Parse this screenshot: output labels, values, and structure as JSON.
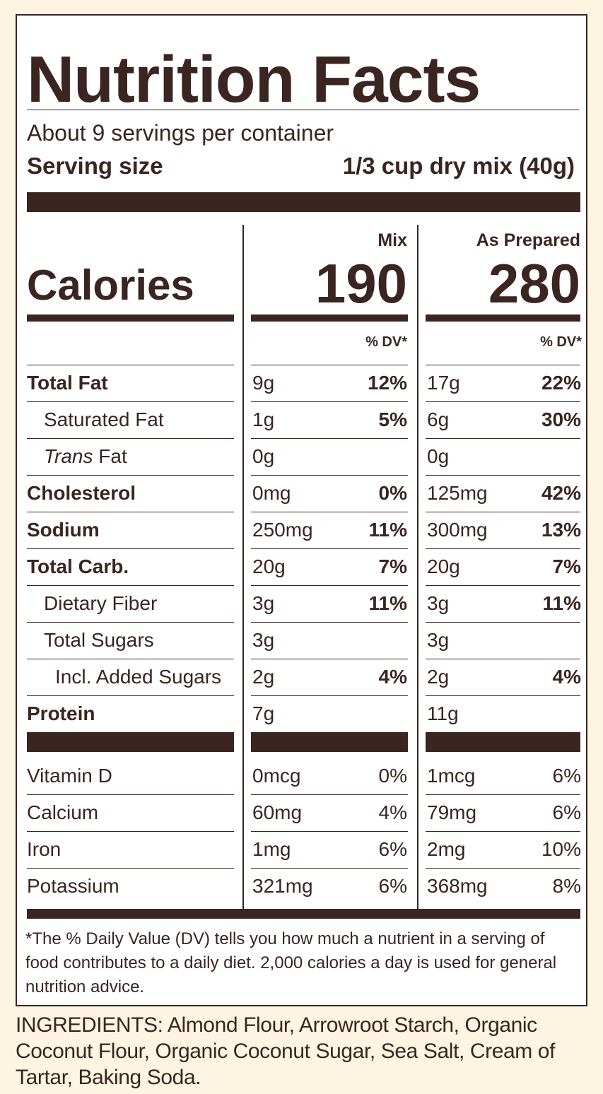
{
  "title": "Nutrition Facts",
  "servings_per_container": "About 9 servings per container",
  "serving_size": {
    "label": "Serving size",
    "value": "1/3 cup dry mix (40g)"
  },
  "columns": {
    "mix": "Mix",
    "prepared": "As Prepared",
    "dv_header": "% DV*"
  },
  "calories": {
    "label": "Calories",
    "mix": "190",
    "prepared": "280"
  },
  "nutrients": [
    {
      "name": "Total Fat",
      "bold": true,
      "indent": 0,
      "mix_amount": "9g",
      "mix_dv": "12%",
      "prep_amount": "17g",
      "prep_dv": "22%"
    },
    {
      "name": "Saturated Fat",
      "bold": false,
      "indent": 1,
      "mix_amount": "1g",
      "mix_dv": "5%",
      "prep_amount": "6g",
      "prep_dv": "30%"
    },
    {
      "name_italic": "Trans",
      "name": " Fat",
      "bold": false,
      "indent": 1,
      "mix_amount": "0g",
      "mix_dv": "",
      "prep_amount": "0g",
      "prep_dv": ""
    },
    {
      "name": "Cholesterol",
      "bold": true,
      "indent": 0,
      "mix_amount": "0mg",
      "mix_dv": "0%",
      "prep_amount": "125mg",
      "prep_dv": "42%"
    },
    {
      "name": "Sodium",
      "bold": true,
      "indent": 0,
      "mix_amount": "250mg",
      "mix_dv": "11%",
      "prep_amount": "300mg",
      "prep_dv": "13%"
    },
    {
      "name": "Total Carb.",
      "bold": true,
      "indent": 0,
      "mix_amount": "20g",
      "mix_dv": "7%",
      "prep_amount": "20g",
      "prep_dv": "7%"
    },
    {
      "name": "Dietary Fiber",
      "bold": false,
      "indent": 1,
      "mix_amount": "3g",
      "mix_dv": "11%",
      "prep_amount": "3g",
      "prep_dv": "11%"
    },
    {
      "name": "Total Sugars",
      "bold": false,
      "indent": 1,
      "mix_amount": "3g",
      "mix_dv": "",
      "prep_amount": "3g",
      "prep_dv": ""
    },
    {
      "name": "Incl. Added Sugars",
      "bold": false,
      "indent": 2,
      "mix_amount": "2g",
      "mix_dv": "4%",
      "prep_amount": "2g",
      "prep_dv": "4%"
    },
    {
      "name": "Protein",
      "bold": true,
      "indent": 0,
      "mix_amount": "7g",
      "mix_dv": "",
      "prep_amount": "11g",
      "prep_dv": ""
    }
  ],
  "vitamins": [
    {
      "name": "Vitamin D",
      "mix_amount": "0mcg",
      "mix_dv": "0%",
      "prep_amount": "1mcg",
      "prep_dv": "6%"
    },
    {
      "name": "Calcium",
      "mix_amount": "60mg",
      "mix_dv": "4%",
      "prep_amount": "79mg",
      "prep_dv": "6%"
    },
    {
      "name": "Iron",
      "mix_amount": "1mg",
      "mix_dv": "6%",
      "prep_amount": "2mg",
      "prep_dv": "10%"
    },
    {
      "name": "Potassium",
      "mix_amount": "321mg",
      "mix_dv": "6%",
      "prep_amount": "368mg",
      "prep_dv": "8%"
    }
  ],
  "footnote": "*The % Daily Value (DV) tells you how much a nutrient in a serving of food contributes to a daily diet. 2,000 calories a day is used for general nutrition advice.",
  "ingredients": "INGREDIENTS: Almond Flour, Arrowroot Starch, Organic Coconut Flour, Organic Coconut Sugar, Sea Salt, Cream of Tartar, Baking Soda.",
  "colors": {
    "ink": "#3a2520",
    "background": "#fdf5e2",
    "panel": "#ffffff"
  }
}
